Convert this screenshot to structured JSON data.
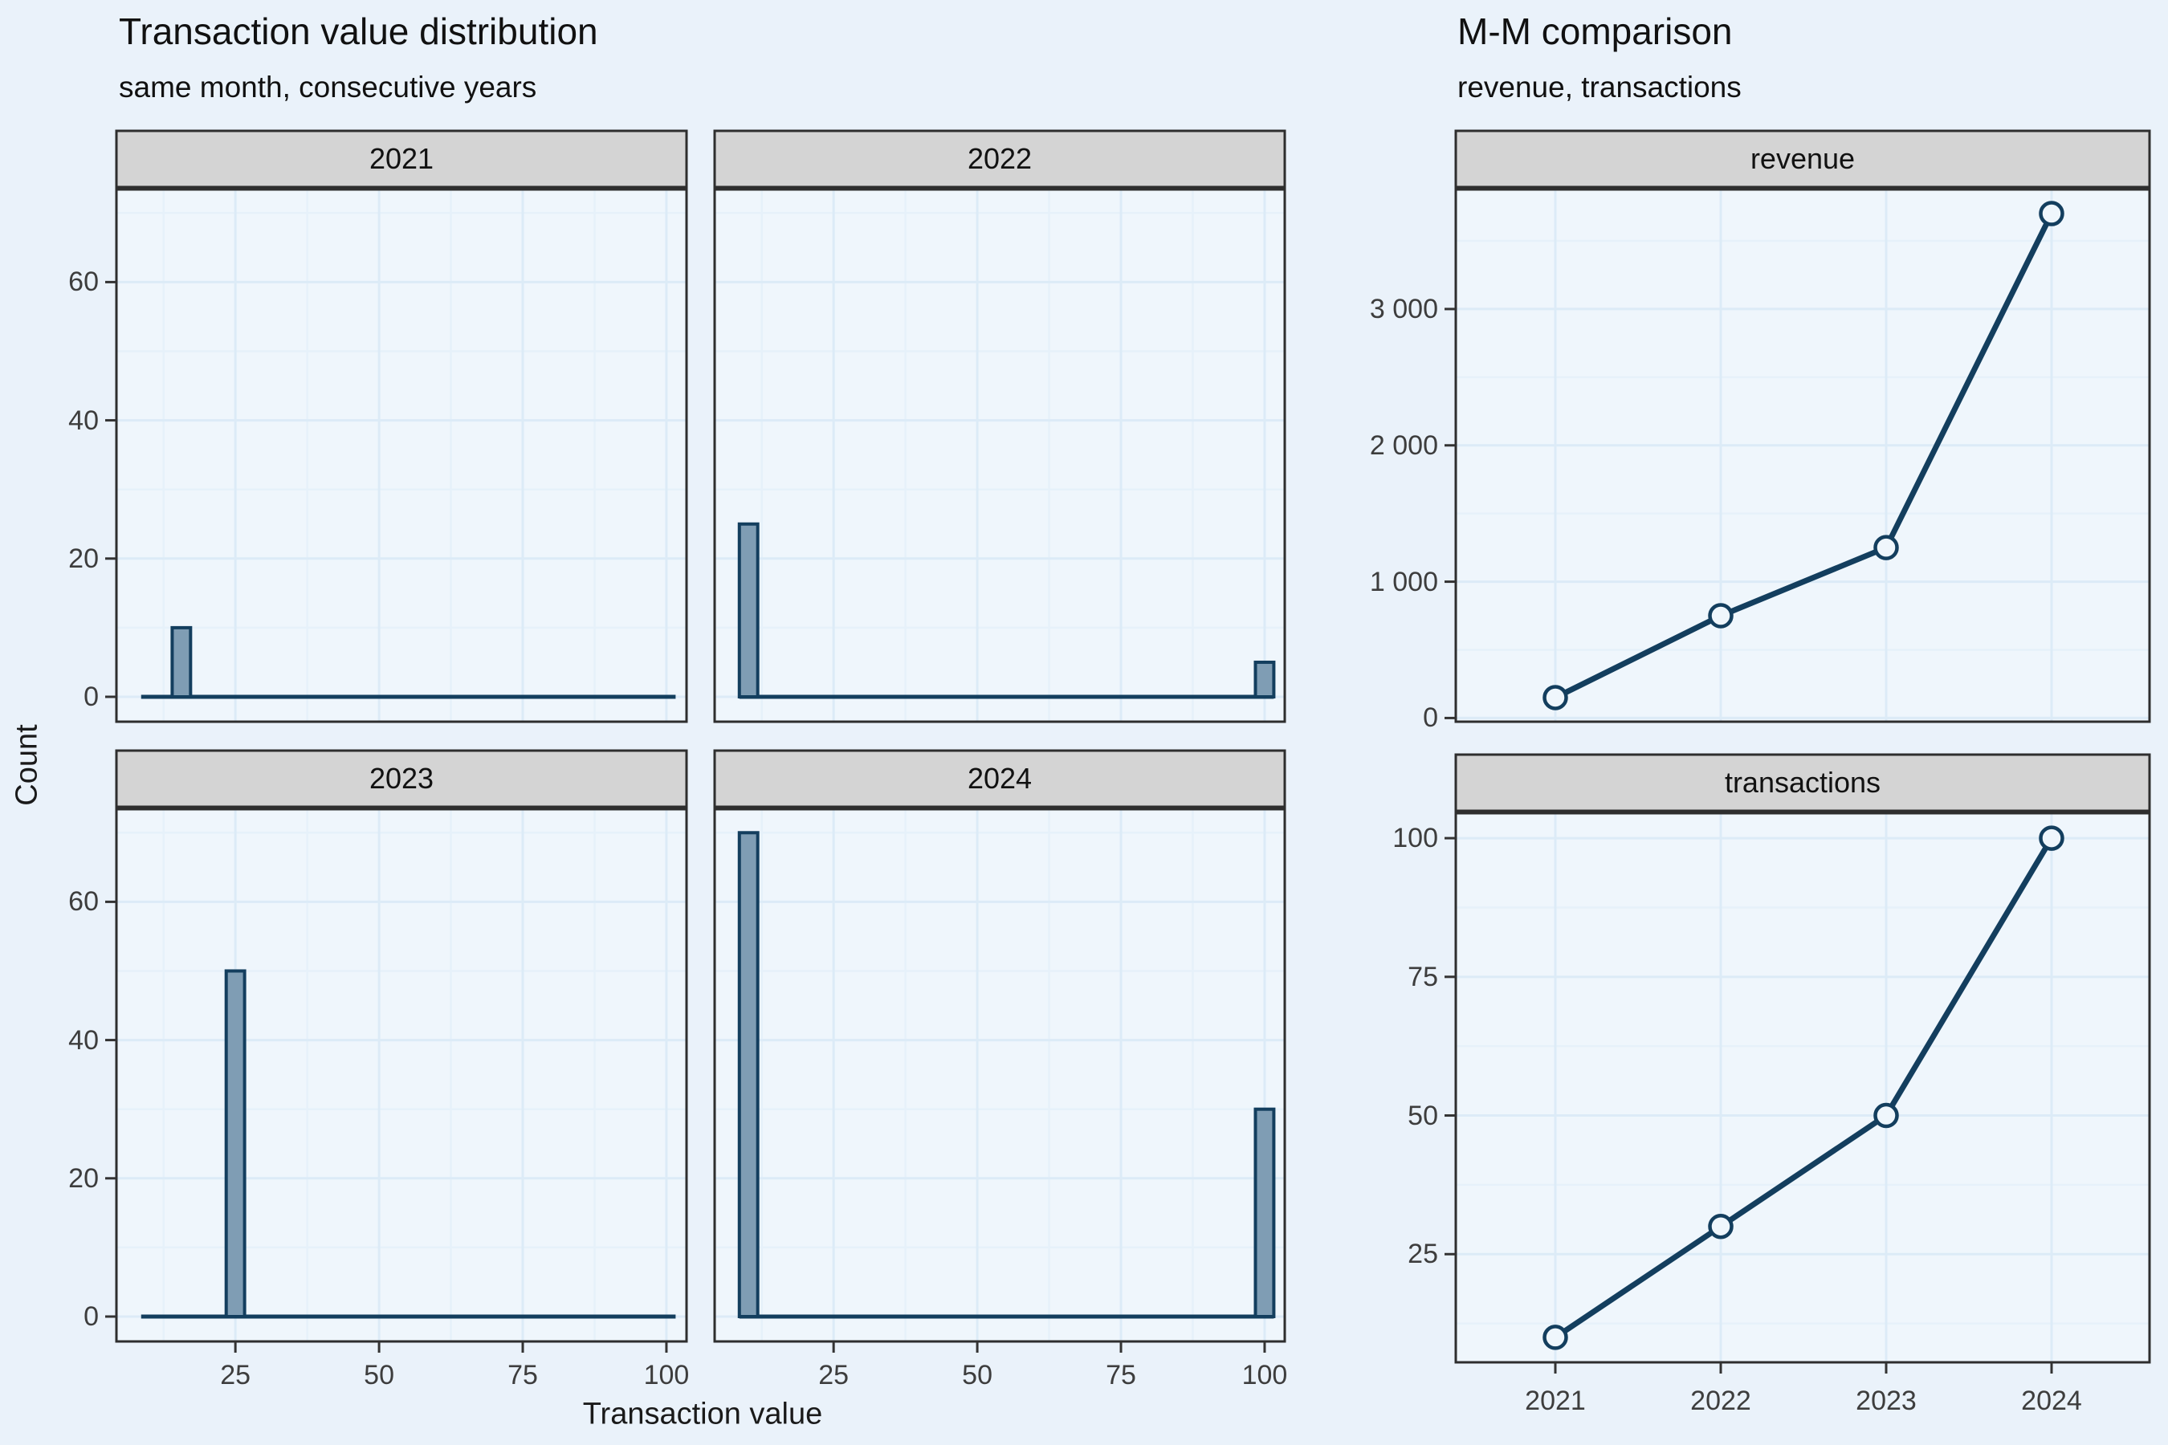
{
  "colors": {
    "page_bg": "#EAF2FA",
    "panel_bg": "#EFF6FC",
    "strip_bg": "#D4D4D4",
    "border": "#2E2E2E",
    "grid_major": "#DCEBF7",
    "grid_minor": "#E6F1FA",
    "accent_line": "#133E5E",
    "bar_fill": "#7F9DB4",
    "axis_text": "#3D3D3D",
    "tick_mark": "#333333"
  },
  "left_chart": {
    "title": "Transaction value distribution",
    "subtitle": "same month, consecutive years",
    "x_axis_title": "Transaction value",
    "y_axis_title": "Count",
    "facet_labels": [
      "2021",
      "2022",
      "2023",
      "2024"
    ],
    "x_ticks": [
      {
        "value": 25,
        "label": "25"
      },
      {
        "value": 50,
        "label": "50"
      },
      {
        "value": 75,
        "label": "75"
      },
      {
        "value": 100,
        "label": "100"
      }
    ],
    "y_ticks": [
      {
        "value": 0,
        "label": "0"
      },
      {
        "value": 20,
        "label": "20"
      },
      {
        "value": 40,
        "label": "40"
      },
      {
        "value": 60,
        "label": "60"
      }
    ]
  },
  "right_chart": {
    "title": "M-M comparison",
    "subtitle": "revenue, transactions",
    "facet_labels": [
      "revenue",
      "transactions"
    ],
    "x_ticks": [
      {
        "value": 2021,
        "label": "2021"
      },
      {
        "value": 2022,
        "label": "2022"
      },
      {
        "value": 2023,
        "label": "2023"
      },
      {
        "value": 2024,
        "label": "2024"
      }
    ],
    "revenue_y_ticks": [
      {
        "value": 0,
        "label": "0"
      },
      {
        "value": 1000,
        "label": "1 000"
      },
      {
        "value": 2000,
        "label": "2 000"
      },
      {
        "value": 3000,
        "label": "3 000"
      }
    ],
    "transactions_y_ticks": [
      {
        "value": 25,
        "label": "25"
      },
      {
        "value": 50,
        "label": "50"
      },
      {
        "value": 75,
        "label": "75"
      },
      {
        "value": 100,
        "label": "100"
      }
    ]
  },
  "chart_data": [
    {
      "type": "bar",
      "title": "Transaction value distribution",
      "subtitle": "same month, consecutive years",
      "xlabel": "Transaction value",
      "ylabel": "Count",
      "xlim": [
        4.3,
        103.5
      ],
      "ylim": [
        -3.6,
        73.4
      ],
      "bin_width": 3.2,
      "baseline_extent": [
        8.6,
        101.6
      ],
      "x_major_grid": [
        25,
        50,
        75,
        100
      ],
      "x_minor_grid": [
        12.5,
        37.5,
        62.5,
        87.5
      ],
      "y_major_grid": [
        0,
        20,
        40,
        60
      ],
      "y_minor_grid": [
        10,
        30,
        50,
        70
      ],
      "facets": [
        {
          "label": "2021",
          "bars": [
            {
              "x": 15.6,
              "count": 10
            }
          ]
        },
        {
          "label": "2022",
          "bars": [
            {
              "x": 10.2,
              "count": 25
            },
            {
              "x": 100,
              "count": 5
            }
          ]
        },
        {
          "label": "2023",
          "bars": [
            {
              "x": 25,
              "count": 50
            }
          ]
        },
        {
          "label": "2024",
          "bars": [
            {
              "x": 10.2,
              "count": 70
            },
            {
              "x": 100,
              "count": 30
            }
          ]
        }
      ]
    },
    {
      "type": "line",
      "title": "M-M comparison",
      "subtitle": "revenue, transactions",
      "x": [
        2021,
        2022,
        2023,
        2024
      ],
      "series": [
        {
          "name": "revenue",
          "values": [
            150,
            750,
            1250,
            3700
          ],
          "ylim": [
            -27,
            3877
          ],
          "y_major_grid": [
            0,
            1000,
            2000,
            3000
          ],
          "y_minor_grid": [
            500,
            1500,
            2500,
            3500
          ]
        },
        {
          "name": "transactions",
          "values": [
            10,
            30,
            50,
            100
          ],
          "ylim": [
            5.5,
            104.5
          ],
          "y_major_grid": [
            25,
            50,
            75,
            100
          ],
          "y_minor_grid": [
            12.5,
            37.5,
            62.5,
            87.5
          ]
        }
      ]
    }
  ]
}
